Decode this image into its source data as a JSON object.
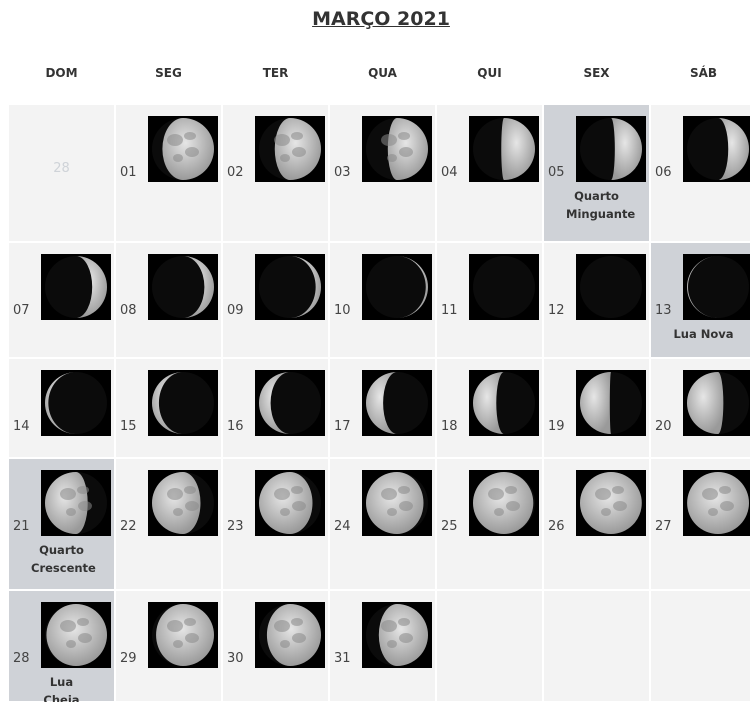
{
  "title": "MARÇO 2021",
  "weekdays": [
    "DOM",
    "SEG",
    "TER",
    "QUA",
    "QUI",
    "SEX",
    "SÁB"
  ],
  "rows": [
    [
      {
        "day": "28",
        "muted": true
      },
      {
        "day": "01"
      },
      {
        "day": "02"
      },
      {
        "day": "03"
      },
      {
        "day": "04"
      },
      {
        "day": "05",
        "label": "Quarto Minguante"
      },
      {
        "day": "06"
      }
    ],
    [
      {
        "day": "07"
      },
      {
        "day": "08"
      },
      {
        "day": "09"
      },
      {
        "day": "10"
      },
      {
        "day": "11"
      },
      {
        "day": "12"
      },
      {
        "day": "13",
        "label": "Lua Nova"
      }
    ],
    [
      {
        "day": "14"
      },
      {
        "day": "15"
      },
      {
        "day": "16"
      },
      {
        "day": "17"
      },
      {
        "day": "18"
      },
      {
        "day": "19"
      },
      {
        "day": "20"
      }
    ],
    [
      {
        "day": "21",
        "label": "Quarto Crescente"
      },
      {
        "day": "22"
      },
      {
        "day": "23"
      },
      {
        "day": "24"
      },
      {
        "day": "25"
      },
      {
        "day": "26"
      },
      {
        "day": "27"
      }
    ],
    [
      {
        "day": "28",
        "label": "Lua Cheia"
      },
      {
        "day": "29"
      },
      {
        "day": "30"
      },
      {
        "day": "31"
      }
    ]
  ]
}
